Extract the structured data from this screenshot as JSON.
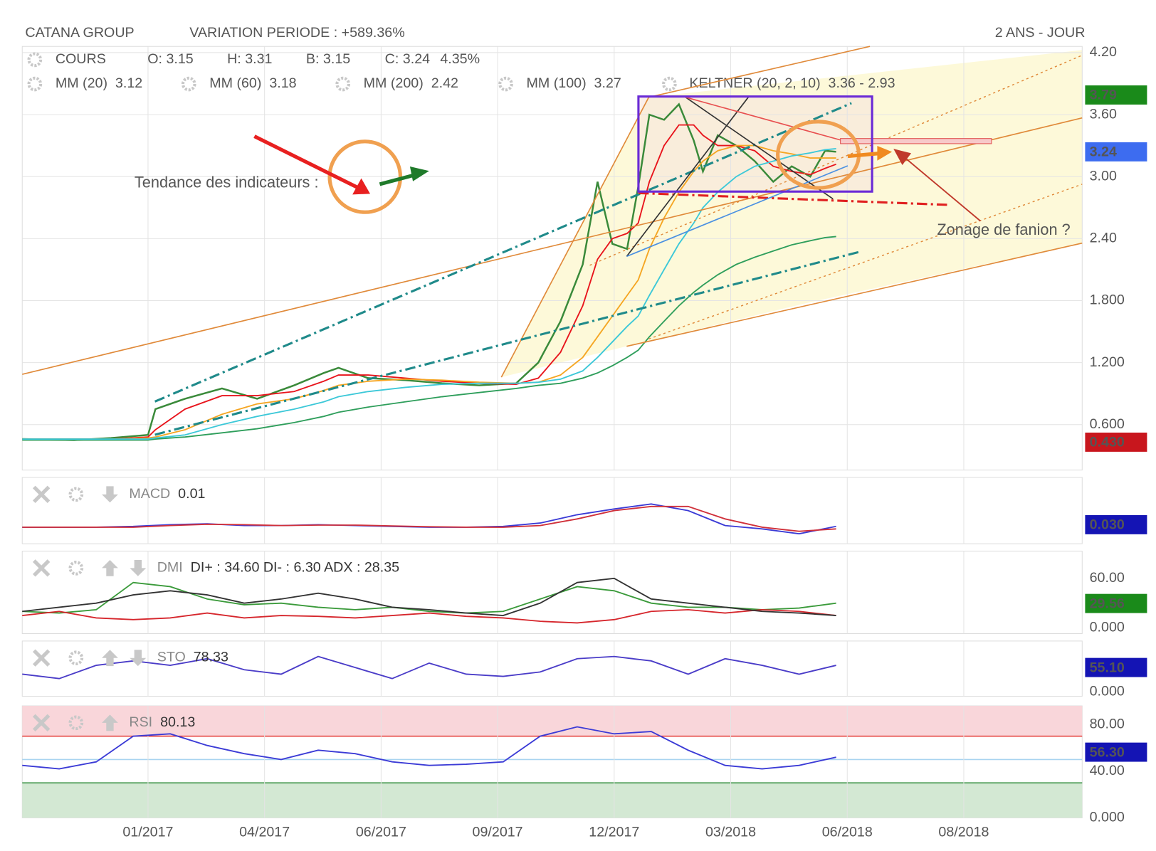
{
  "header": {
    "title": "CATANA GROUP",
    "variation": "VARIATION PERIODE : +589.36%",
    "period": "2 ANS - JOUR"
  },
  "annotations": [
    {
      "text": "Tendance des indicateurs :",
      "color": "#1f4e8c"
    },
    {
      "text": "Zonage de fanion ?",
      "color": "#c0392b"
    }
  ],
  "chart_data": [
    {
      "type": "line",
      "title": "COURS",
      "legend_ohlc": [
        {
          "text": "O: 3.15",
          "color": "#555555"
        },
        {
          "text": "H: 3.31",
          "color": "#555555"
        },
        {
          "text": "B: 3.15",
          "color": "#555555"
        },
        {
          "text": "C: 3.24",
          "color": "#555555"
        },
        {
          "text": "4.35%",
          "color": "#1a8a1a"
        }
      ],
      "legend_extra": {
        "name": "KELTNER (20, 2, 10)",
        "value": "3.36 - 2.93",
        "color": "#1a8a1a"
      },
      "x": [
        0,
        28,
        48,
        68,
        72,
        88,
        108,
        127,
        147,
        163,
        171,
        187,
        207,
        227,
        247,
        267,
        279,
        291,
        303,
        311,
        319,
        327,
        333,
        339,
        347,
        355,
        363,
        368,
        376,
        386,
        396,
        406,
        416,
        426,
        434,
        440
      ],
      "series": [
        {
          "name": "COURS",
          "color": "#3a8a3a",
          "values": [
            0.46,
            0.45,
            0.47,
            0.5,
            0.75,
            0.85,
            0.95,
            0.85,
            0.98,
            1.1,
            1.15,
            1.05,
            1.03,
            1.0,
            0.98,
            1.0,
            1.2,
            1.6,
            2.15,
            2.95,
            2.35,
            2.3,
            2.9,
            3.6,
            3.55,
            3.7,
            3.35,
            3.05,
            3.4,
            3.3,
            3.15,
            2.95,
            3.1,
            3.0,
            3.25,
            3.24
          ]
        },
        {
          "name": "MM (20)",
          "legend_value": "3.12",
          "color": "#e8141c",
          "values": [
            0.46,
            0.46,
            0.46,
            0.48,
            0.55,
            0.75,
            0.88,
            0.88,
            0.92,
            1.02,
            1.08,
            1.08,
            1.05,
            1.02,
            1.0,
            0.99,
            1.05,
            1.3,
            1.75,
            2.2,
            2.4,
            2.45,
            2.55,
            2.95,
            3.3,
            3.5,
            3.5,
            3.4,
            3.3,
            3.3,
            3.25,
            3.1,
            3.05,
            3.02,
            3.08,
            3.12
          ]
        },
        {
          "name": "MM (60)",
          "legend_value": "3.18",
          "color": "#f5a623",
          "values": [
            0.46,
            0.46,
            0.46,
            0.47,
            0.48,
            0.55,
            0.7,
            0.8,
            0.85,
            0.93,
            0.98,
            1.02,
            1.04,
            1.03,
            1.01,
            1.0,
            1.01,
            1.08,
            1.25,
            1.45,
            1.65,
            1.85,
            2.0,
            2.3,
            2.6,
            2.85,
            3.05,
            3.15,
            3.25,
            3.3,
            3.3,
            3.25,
            3.22,
            3.18,
            3.18,
            3.18
          ]
        },
        {
          "name": "MM (200)",
          "legend_value": "2.42",
          "color": "#2e9e5b",
          "values": [
            0.45,
            0.45,
            0.45,
            0.45,
            0.46,
            0.48,
            0.52,
            0.56,
            0.62,
            0.68,
            0.72,
            0.77,
            0.82,
            0.87,
            0.91,
            0.95,
            0.98,
            1.0,
            1.05,
            1.1,
            1.17,
            1.25,
            1.32,
            1.45,
            1.6,
            1.75,
            1.88,
            1.95,
            2.05,
            2.15,
            2.22,
            2.28,
            2.34,
            2.38,
            2.41,
            2.42
          ]
        },
        {
          "name": "MM (100)",
          "legend_value": "3.27",
          "color": "#3cc8d8",
          "values": [
            0.46,
            0.46,
            0.46,
            0.46,
            0.47,
            0.5,
            0.6,
            0.68,
            0.75,
            0.82,
            0.87,
            0.92,
            0.96,
            0.99,
            1.0,
            1.0,
            1.01,
            1.04,
            1.12,
            1.25,
            1.4,
            1.55,
            1.65,
            1.85,
            2.1,
            2.35,
            2.55,
            2.7,
            2.85,
            3.0,
            3.1,
            3.15,
            3.2,
            3.23,
            3.26,
            3.27
          ]
        }
      ],
      "xlim": [
        0,
        573
      ],
      "xticks": [
        {
          "value": 68,
          "label": "01/2017"
        },
        {
          "value": 131,
          "label": "04/2017"
        },
        {
          "value": 194,
          "label": "06/2017"
        },
        {
          "value": 257,
          "label": "09/2017"
        },
        {
          "value": 320,
          "label": "12/2017"
        },
        {
          "value": 383,
          "label": "03/2018"
        },
        {
          "value": 446,
          "label": "06/2018"
        },
        {
          "value": 509,
          "label": "08/2018"
        }
      ],
      "ylim": [
        0.16,
        4.26
      ],
      "yticks": [
        {
          "value": 0.6,
          "label": "0.600"
        },
        {
          "value": 1.2,
          "label": "1.200"
        },
        {
          "value": 1.8,
          "label": "1.800"
        },
        {
          "value": 2.4,
          "label": "2.40"
        },
        {
          "value": 3.0,
          "label": "3.00"
        },
        {
          "value": 3.6,
          "label": "3.60"
        },
        {
          "value": 4.2,
          "label": "4.20"
        }
      ],
      "tags": [
        {
          "value": 3.79,
          "label": "3.79",
          "color": "#1a8a1a"
        },
        {
          "value": 3.24,
          "label": "3.24",
          "color": "#3d6cf0"
        },
        {
          "value": 0.43,
          "label": "0.430",
          "color": "#c8161d"
        }
      ],
      "grid": true
    },
    {
      "type": "line",
      "title": "MACD",
      "subtitle": "0.01",
      "x": [
        0,
        20,
        40,
        60,
        80,
        100,
        120,
        140,
        160,
        180,
        200,
        220,
        240,
        260,
        280,
        300,
        320,
        340,
        360,
        380,
        400,
        420,
        440
      ],
      "series": [
        {
          "name": "MACD",
          "color": "#3b3bd6",
          "values": [
            0,
            0,
            0,
            0.01,
            0.03,
            0.04,
            0.02,
            0.02,
            0.03,
            0.02,
            0.01,
            0,
            0,
            0.01,
            0.05,
            0.15,
            0.22,
            0.28,
            0.2,
            0.02,
            -0.02,
            -0.08,
            0.01
          ]
        },
        {
          "name": "Signal",
          "color": "#d0303a",
          "values": [
            0,
            0,
            0,
            0,
            0.02,
            0.035,
            0.03,
            0.02,
            0.025,
            0.025,
            0.015,
            0.005,
            0,
            0,
            0.02,
            0.1,
            0.2,
            0.25,
            0.25,
            0.1,
            0,
            -0.05,
            -0.02
          ]
        }
      ],
      "ylim": [
        -0.2,
        0.6
      ],
      "tags": [
        {
          "value": 0.03,
          "label": "0.030",
          "color": "#1414b4"
        }
      ]
    },
    {
      "type": "line",
      "title": "DMI",
      "subtitle": "DI+ : 34.60 DI- : 6.30 ADX : 28.35",
      "x": [
        0,
        20,
        40,
        60,
        80,
        100,
        120,
        140,
        160,
        180,
        200,
        220,
        240,
        260,
        280,
        300,
        320,
        340,
        360,
        380,
        400,
        420,
        440
      ],
      "series": [
        {
          "name": "DI+",
          "color": "#3a9a3a",
          "values": [
            20,
            18,
            22,
            55,
            50,
            35,
            28,
            30,
            25,
            22,
            25,
            20,
            18,
            20,
            35,
            50,
            45,
            30,
            25,
            25,
            22,
            24,
            30
          ]
        },
        {
          "name": "DI-",
          "color": "#d6262c",
          "values": [
            15,
            20,
            12,
            10,
            12,
            18,
            12,
            15,
            14,
            12,
            15,
            18,
            14,
            12,
            8,
            6,
            10,
            20,
            22,
            18,
            22,
            20,
            15
          ]
        },
        {
          "name": "ADX",
          "color": "#333333",
          "values": [
            20,
            25,
            30,
            40,
            45,
            40,
            30,
            35,
            42,
            35,
            25,
            22,
            18,
            15,
            30,
            55,
            60,
            35,
            30,
            25,
            20,
            18,
            15
          ]
        }
      ],
      "ylim": [
        -7,
        93
      ],
      "yticks": [
        {
          "value": 0,
          "label": "0.000"
        },
        {
          "value": 60,
          "label": "60.00"
        }
      ],
      "tags": [
        {
          "value": 29.56,
          "label": "29.56",
          "color": "#1a8a1a"
        }
      ]
    },
    {
      "type": "line",
      "title": "STO",
      "subtitle": "78.33",
      "x": [
        0,
        20,
        40,
        60,
        80,
        100,
        120,
        140,
        160,
        180,
        200,
        220,
        240,
        260,
        280,
        300,
        320,
        340,
        360,
        380,
        400,
        420,
        440
      ],
      "series": [
        {
          "name": "STO",
          "color": "#4a3cc8",
          "values": [
            40,
            30,
            60,
            70,
            60,
            75,
            50,
            40,
            80,
            55,
            30,
            65,
            40,
            35,
            45,
            75,
            80,
            70,
            40,
            75,
            60,
            40,
            60
          ]
        }
      ],
      "ylim": [
        -10,
        115
      ],
      "yticks": [
        {
          "value": 0,
          "label": "0.000"
        }
      ],
      "tags": [
        {
          "value": 55.1,
          "label": "55.10",
          "color": "#1414b4"
        }
      ]
    },
    {
      "type": "line",
      "title": "RSI",
      "subtitle": "80.13",
      "x": [
        0,
        20,
        40,
        60,
        80,
        100,
        120,
        140,
        160,
        180,
        200,
        220,
        240,
        260,
        280,
        300,
        320,
        340,
        360,
        380,
        400,
        420,
        440
      ],
      "series": [
        {
          "name": "RSI",
          "color": "#3b3bd6",
          "values": [
            45,
            42,
            48,
            70,
            72,
            62,
            55,
            50,
            58,
            55,
            48,
            45,
            46,
            48,
            70,
            78,
            72,
            74,
            58,
            45,
            42,
            45,
            52
          ]
        }
      ],
      "ylim": [
        0,
        96
      ],
      "yticks": [
        {
          "value": 0,
          "label": "0.000"
        },
        {
          "value": 40,
          "label": "40.00"
        },
        {
          "value": 80,
          "label": "80.00"
        }
      ],
      "levels": [
        {
          "value": 70,
          "color": "#e53935",
          "fill": "#f9d6da",
          "side": "above"
        },
        {
          "value": 50,
          "color": "#a8d4f0"
        },
        {
          "value": 30,
          "color": "#2e8b3a",
          "fill": "#d3e8d3",
          "side": "below"
        }
      ],
      "tags": [
        {
          "value": 56.3,
          "label": "56.30",
          "color": "#1414b4"
        }
      ]
    }
  ]
}
